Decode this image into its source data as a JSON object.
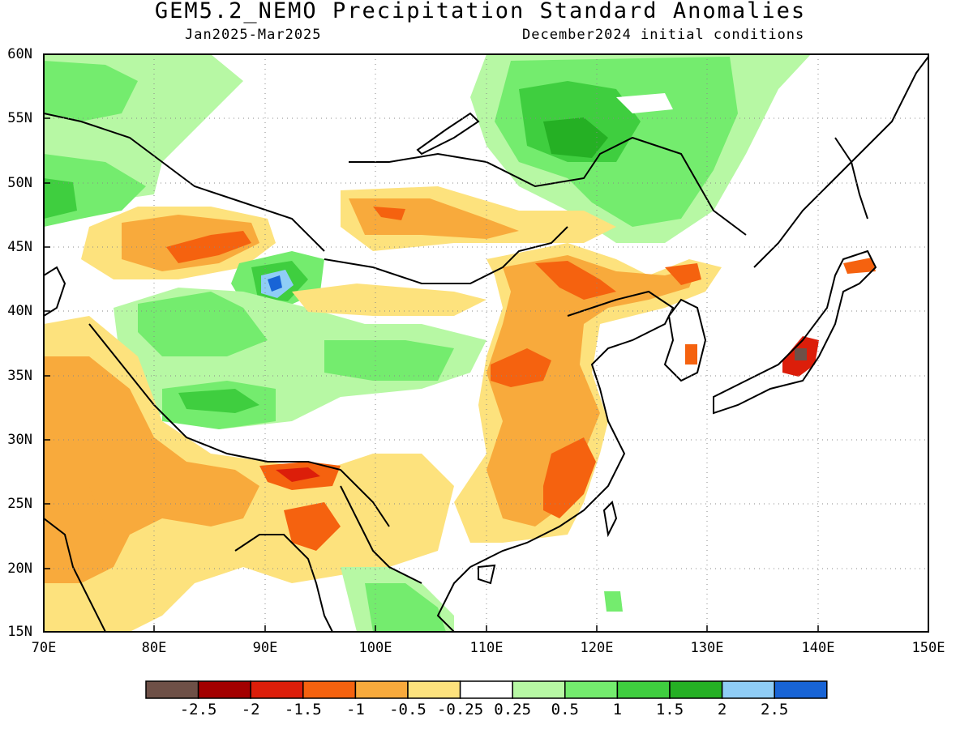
{
  "header": {
    "title": "GEM5.2_NEMO Precipitation Standard Anomalies",
    "period": "Jan2025-Mar2025",
    "init": "December2024 initial conditions"
  },
  "axes": {
    "lat_labels": [
      "60N",
      "55N",
      "50N",
      "45N",
      "40N",
      "35N",
      "30N",
      "25N",
      "20N",
      "15N"
    ],
    "lon_labels": [
      "70E",
      "80E",
      "90E",
      "100E",
      "110E",
      "120E",
      "130E",
      "140E",
      "150E"
    ]
  },
  "colorbar": {
    "colors": [
      "#6e5047",
      "#a30000",
      "#dc1e0a",
      "#f5620f",
      "#f8aa3c",
      "#fde27d",
      "#ffffff",
      "#b7f8a4",
      "#74ec6e",
      "#3fce3f",
      "#25b024",
      "#8fcdf6",
      "#1864d6"
    ],
    "labels": [
      "-2.5",
      "-2",
      "-1.5",
      "-1",
      "-0.5",
      "-0.25",
      "0.25",
      "0.5",
      "1",
      "1.5",
      "2",
      "2.5"
    ]
  },
  "map": {
    "grid": "dotted",
    "colors": {
      "brown": "#6e5047",
      "dark_red": "#a30000",
      "red": "#dc1e0a",
      "orange": "#f5620f",
      "light_orange": "#f8aa3c",
      "yellow": "#fde27d",
      "white": "#ffffff",
      "light_green": "#b7f8a4",
      "green": "#74ec6e",
      "mid_green": "#3fce3f",
      "dark_green": "#25b024",
      "light_blue": "#8fcdf6",
      "blue": "#1864d6"
    }
  }
}
